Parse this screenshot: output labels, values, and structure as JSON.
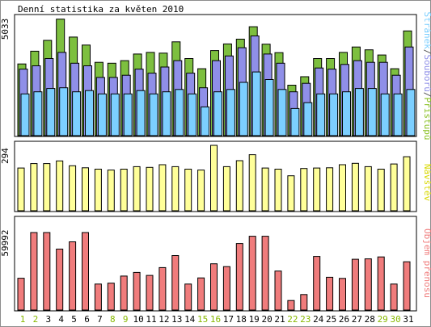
{
  "colors": {
    "background": "#ffffff",
    "frame": "#8c8c8c",
    "panel_border": "#000000",
    "bar_outline": "#000000",
    "hits_green": "#7dbf3f",
    "files_purple": "#8f8fe8",
    "pages_blue": "#7ccfff",
    "visits_yellow": "#ffff99",
    "volume_red": "#f07c7c",
    "weekend_green": "#88b800",
    "weekday_black": "#000000",
    "title_text": "#000000",
    "label_hits_green": "#88c020",
    "label_files_purple": "#8f8fe8",
    "label_pages_blue": "#7ccfff",
    "label_visits_yellow": "#d8d800",
    "label_volume_red": "#f07c7c"
  },
  "chart_data": {
    "type": "bar",
    "title": "Denní statistika za květen 2010",
    "categories": [
      "1",
      "2",
      "3",
      "4",
      "5",
      "6",
      "7",
      "8",
      "9",
      "10",
      "11",
      "12",
      "13",
      "14",
      "15",
      "16",
      "17",
      "18",
      "19",
      "20",
      "21",
      "22",
      "23",
      "24",
      "25",
      "26",
      "27",
      "28",
      "29",
      "30",
      "31"
    ],
    "weekend_days": [
      "1",
      "2",
      "8",
      "9",
      "15",
      "16",
      "22",
      "23",
      "29",
      "30"
    ],
    "panels": [
      {
        "id": "traffic",
        "max_label": "5033",
        "ylim": [
          0,
          5033
        ],
        "legend_labels": [
          "Stránek",
          "/",
          "Souborů",
          "/",
          "Přístupů"
        ],
        "series": [
          {
            "name": "Přístupů",
            "values": [
              3040,
              3580,
              4040,
              4940,
              4180,
              3840,
              3110,
              3070,
              3180,
              3460,
              3530,
              3500,
              3980,
              3270,
              2840,
              3610,
              3890,
              4090,
              4620,
              3880,
              3520,
              2140,
              2500,
              3270,
              3270,
              3530,
              3760,
              3640,
              3420,
              2840,
              4440
            ]
          },
          {
            "name": "Souborů",
            "values": [
              2820,
              2960,
              3270,
              3530,
              3070,
              2960,
              2470,
              2470,
              2560,
              2820,
              2650,
              2910,
              3180,
              2650,
              2030,
              3180,
              3380,
              3730,
              4230,
              3460,
              3070,
              1860,
              2220,
              2870,
              2820,
              3020,
              3180,
              3110,
              3110,
              2560,
              3760
            ]
          },
          {
            "name": "Stránek",
            "values": [
              1770,
              1860,
              2000,
              2030,
              1860,
              1910,
              1770,
              1770,
              1770,
              1910,
              1770,
              1860,
              1960,
              1770,
              1220,
              1860,
              1960,
              2260,
              2700,
              2380,
              1960,
              1150,
              1400,
              1770,
              1770,
              1860,
              2000,
              2000,
              1770,
              1770,
              1960
            ]
          }
        ]
      },
      {
        "id": "visits",
        "max_label": "294",
        "ylim": [
          0,
          294
        ],
        "legend_labels": [
          "Návštěv"
        ],
        "series": [
          {
            "name": "Návštěv",
            "values": [
              192,
              212,
              212,
              224,
              202,
              193,
              187,
              183,
              187,
              198,
              195,
              207,
              198,
              187,
              183,
              294,
              198,
              225,
              252,
              192,
              187,
              157,
              190,
              192,
              193,
              207,
              213,
              198,
              187,
              210,
              243
            ]
          }
        ]
      },
      {
        "id": "volume",
        "max_label": "59992",
        "ylim": [
          0,
          59992
        ],
        "legend_labels": [
          "Objem přenosu"
        ],
        "series": [
          {
            "name": "Objem přenosu",
            "values": [
              24600,
              59992,
              59992,
              47200,
              52800,
              59992,
              20100,
              20800,
              26300,
              29100,
              26800,
              32900,
              42200,
              20100,
              24900,
              35800,
              33600,
              51500,
              57100,
              57100,
              30200,
              7400,
              12000,
              41500,
              25400,
              24500,
              39300,
              39600,
              41100,
              20100,
              37400
            ]
          }
        ]
      }
    ]
  }
}
